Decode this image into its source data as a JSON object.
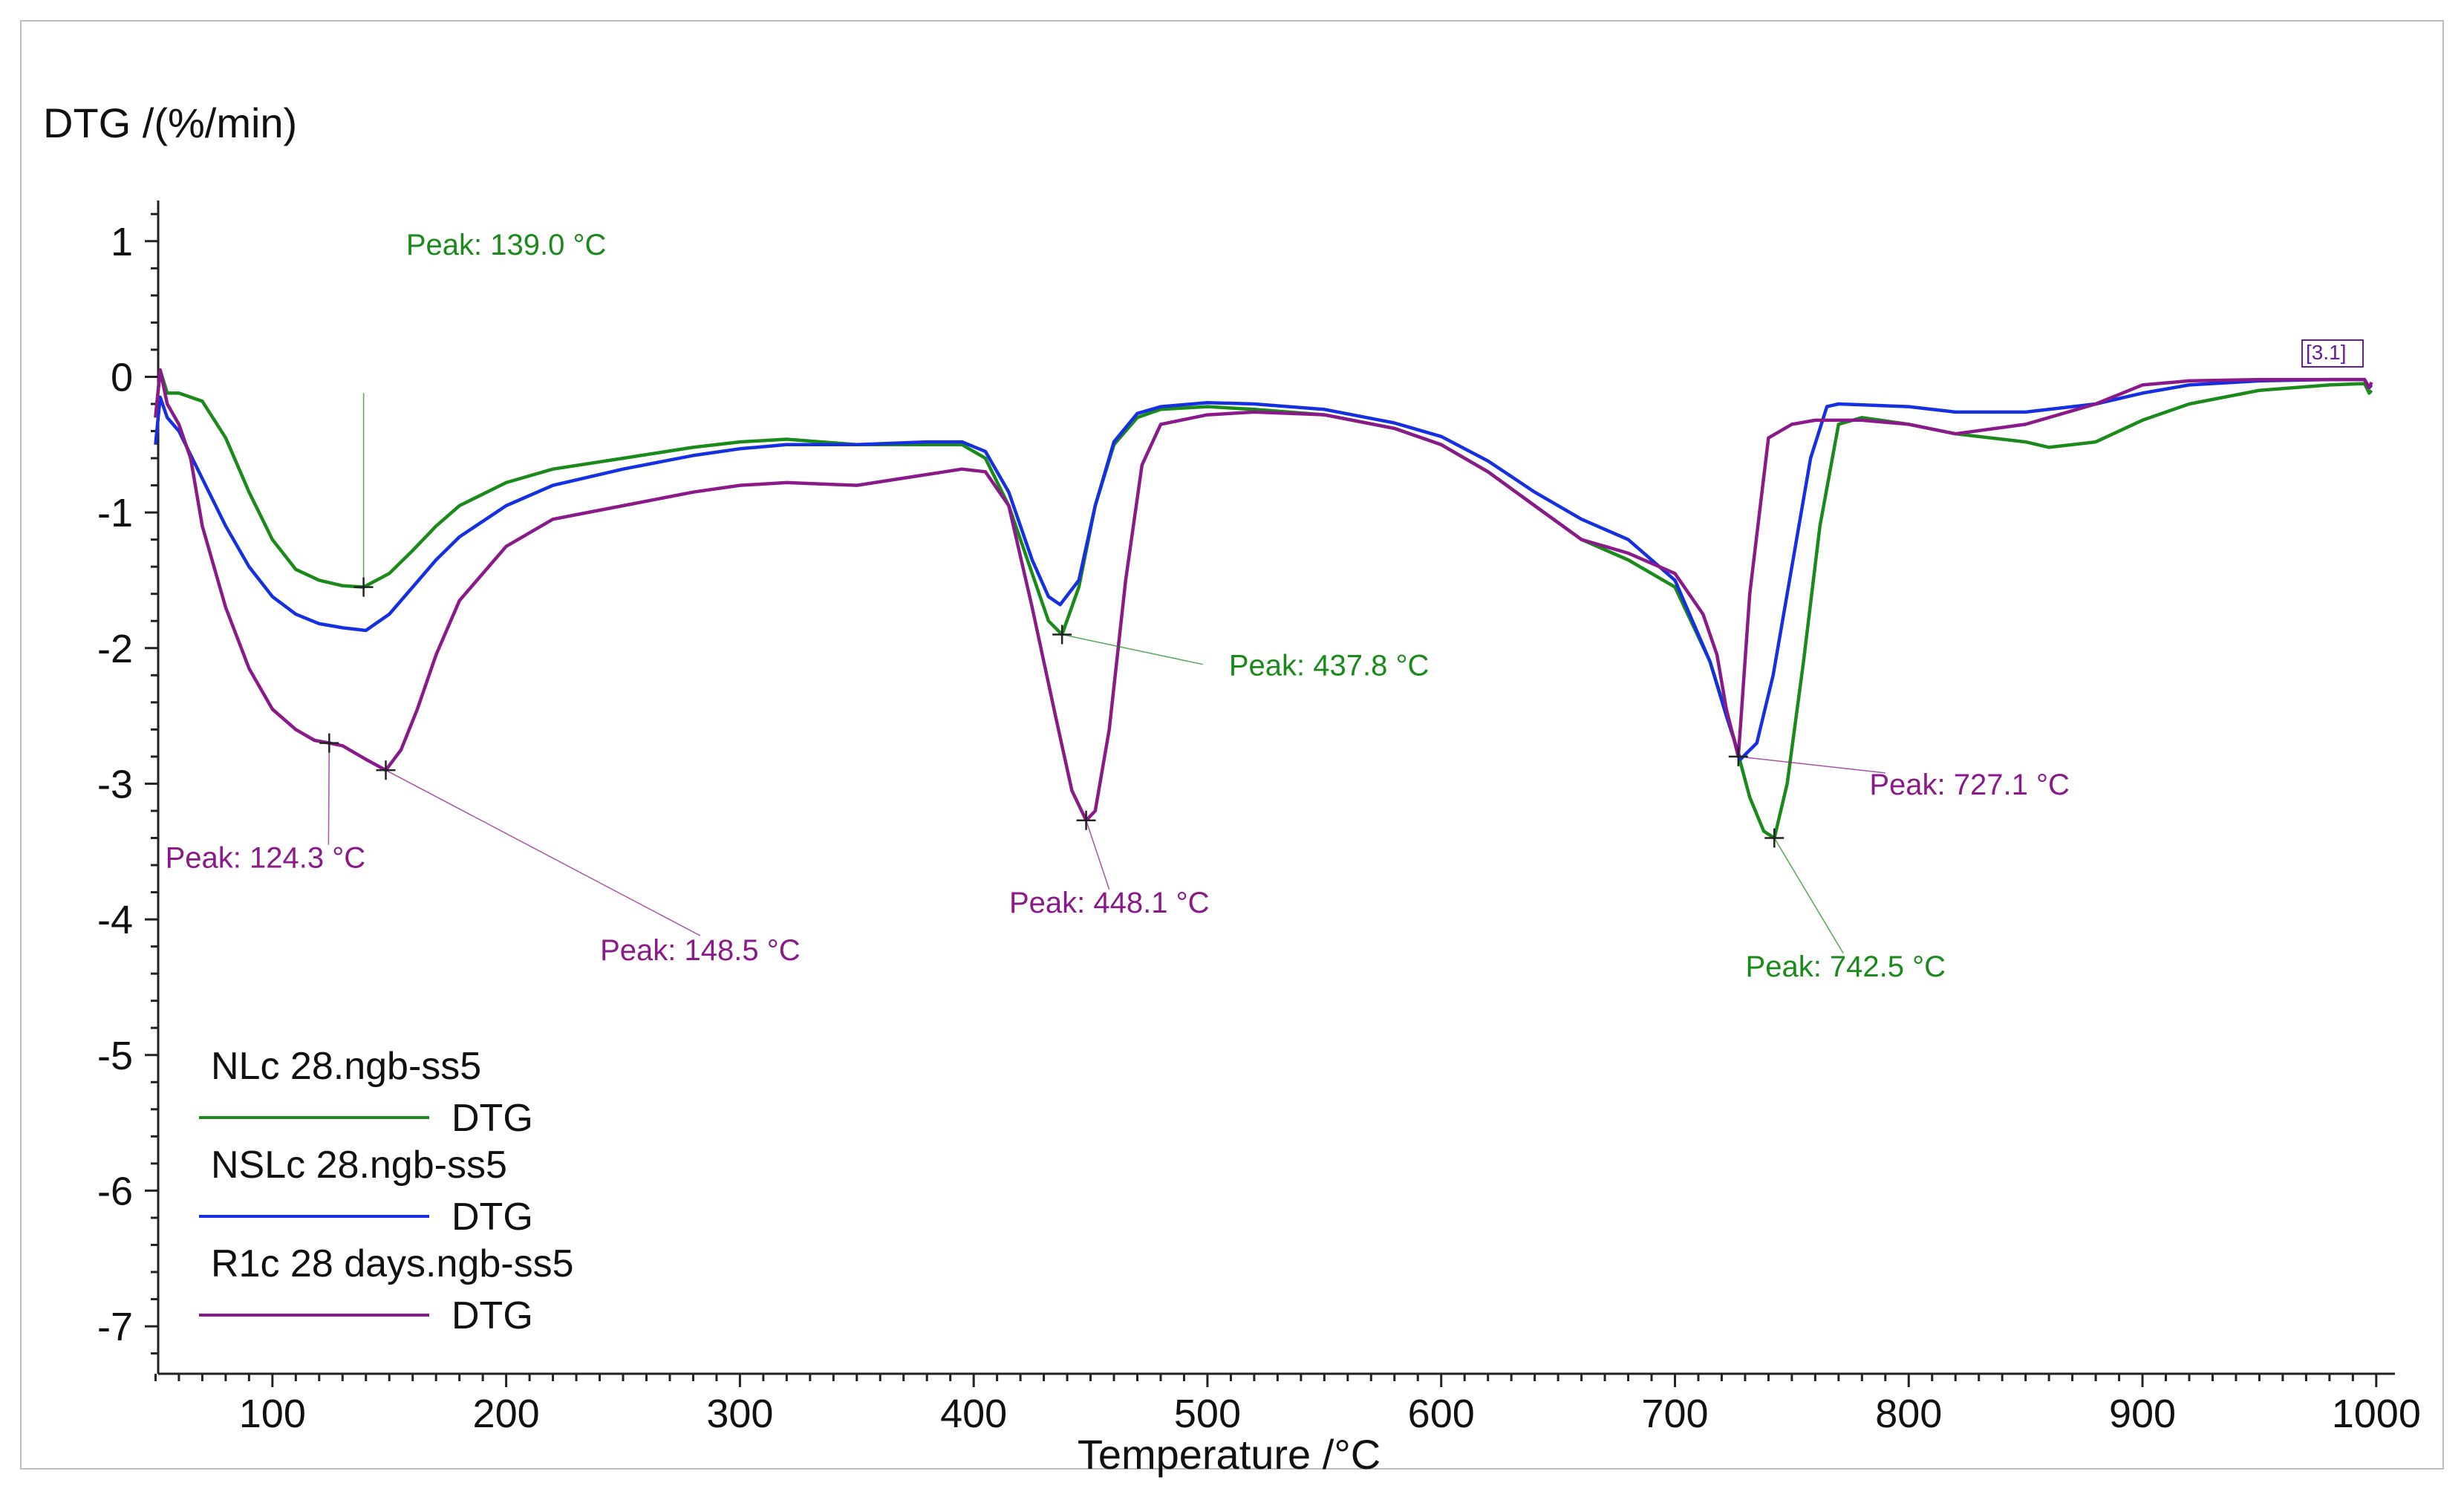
{
  "chart_data": {
    "type": "line",
    "title": "",
    "ylabel": "DTG /(%/min)",
    "xlabel": "Temperature /°C",
    "xlim": [
      47,
      1008
    ],
    "ylim": [
      -7.35,
      1.3
    ],
    "x_ticks": [
      100,
      200,
      300,
      400,
      500,
      600,
      700,
      800,
      900,
      1000
    ],
    "y_ticks": [
      1,
      0,
      -1,
      -2,
      -3,
      -4,
      -5,
      -6,
      -7
    ],
    "end_marker_label": "[3.1]",
    "legend": {
      "placement": "bottom-left",
      "entries": [
        {
          "file": "NLc 28.ngb-ss5",
          "label": "DTG",
          "color": "#1a8a1a"
        },
        {
          "file": "NSLc 28.ngb-ss5",
          "label": "DTG",
          "color": "#1530e0"
        },
        {
          "file": "R1c 28 days.ngb-ss5",
          "label": "DTG",
          "color": "#8a1a8a"
        }
      ]
    },
    "series": [
      {
        "name": "NLc 28.ngb-ss5 DTG",
        "color": "#1a8a1a",
        "x": [
          50,
          52,
          55,
          60,
          70,
          80,
          90,
          100,
          110,
          120,
          130,
          139,
          150,
          160,
          170,
          180,
          200,
          220,
          250,
          280,
          300,
          320,
          350,
          380,
          395,
          405,
          415,
          425,
          432,
          437.8,
          445,
          452,
          460,
          470,
          480,
          500,
          520,
          550,
          580,
          600,
          620,
          640,
          660,
          680,
          700,
          715,
          725,
          732,
          738,
          742.5,
          748,
          755,
          762,
          770,
          780,
          800,
          820,
          850,
          860,
          880,
          900,
          920,
          950,
          980,
          995,
          997,
          998
        ],
        "values": [
          -0.3,
          0.05,
          -0.12,
          -0.12,
          -0.18,
          -0.45,
          -0.85,
          -1.2,
          -1.42,
          -1.5,
          -1.54,
          -1.55,
          -1.45,
          -1.28,
          -1.1,
          -0.95,
          -0.78,
          -0.68,
          -0.6,
          -0.52,
          -0.48,
          -0.46,
          -0.5,
          -0.5,
          -0.5,
          -0.6,
          -0.95,
          -1.45,
          -1.8,
          -1.9,
          -1.55,
          -0.95,
          -0.5,
          -0.3,
          -0.24,
          -0.22,
          -0.24,
          -0.28,
          -0.38,
          -0.5,
          -0.7,
          -0.95,
          -1.2,
          -1.35,
          -1.55,
          -2.1,
          -2.65,
          -3.1,
          -3.35,
          -3.4,
          -3.0,
          -2.1,
          -1.1,
          -0.35,
          -0.3,
          -0.35,
          -0.42,
          -0.48,
          -0.52,
          -0.48,
          -0.32,
          -0.2,
          -0.1,
          -0.06,
          -0.05,
          -0.12,
          -0.1
        ]
      },
      {
        "name": "NSLc 28.ngb-ss5 DTG",
        "color": "#1530e0",
        "x": [
          50,
          52,
          55,
          60,
          70,
          80,
          90,
          100,
          110,
          120,
          130,
          140,
          150,
          160,
          170,
          180,
          200,
          220,
          250,
          280,
          300,
          320,
          350,
          380,
          395,
          405,
          415,
          425,
          432,
          437,
          445,
          452,
          460,
          470,
          480,
          500,
          520,
          550,
          580,
          600,
          620,
          640,
          660,
          680,
          700,
          715,
          722,
          728,
          735,
          742,
          750,
          758,
          765,
          770,
          800,
          820,
          850,
          880,
          900,
          920,
          950,
          980,
          995,
          997,
          998
        ],
        "values": [
          -0.5,
          -0.15,
          -0.3,
          -0.4,
          -0.75,
          -1.1,
          -1.4,
          -1.62,
          -1.75,
          -1.82,
          -1.85,
          -1.87,
          -1.75,
          -1.55,
          -1.35,
          -1.18,
          -0.95,
          -0.8,
          -0.68,
          -0.58,
          -0.53,
          -0.5,
          -0.5,
          -0.48,
          -0.48,
          -0.55,
          -0.85,
          -1.35,
          -1.62,
          -1.68,
          -1.5,
          -0.95,
          -0.48,
          -0.27,
          -0.22,
          -0.19,
          -0.2,
          -0.24,
          -0.34,
          -0.44,
          -0.62,
          -0.85,
          -1.05,
          -1.2,
          -1.5,
          -2.1,
          -2.5,
          -2.82,
          -2.7,
          -2.2,
          -1.4,
          -0.6,
          -0.22,
          -0.2,
          -0.22,
          -0.26,
          -0.26,
          -0.2,
          -0.12,
          -0.06,
          -0.03,
          -0.02,
          -0.02,
          -0.08,
          -0.06
        ]
      },
      {
        "name": "R1c 28 days.ngb-ss5 DTG",
        "color": "#8a1a8a",
        "x": [
          50,
          52,
          55,
          60,
          65,
          70,
          80,
          90,
          100,
          110,
          118,
          124.3,
          130,
          140,
          148.5,
          155,
          162,
          170,
          180,
          200,
          220,
          250,
          280,
          300,
          320,
          350,
          380,
          395,
          405,
          415,
          425,
          435,
          442,
          448.1,
          452,
          458,
          465,
          472,
          480,
          500,
          520,
          550,
          580,
          600,
          620,
          640,
          660,
          680,
          700,
          712,
          718,
          722,
          727.1,
          732,
          740,
          750,
          760,
          780,
          800,
          820,
          850,
          880,
          900,
          920,
          950,
          980,
          995,
          997,
          998
        ],
        "values": [
          -0.3,
          0.05,
          -0.2,
          -0.35,
          -0.6,
          -1.1,
          -1.7,
          -2.15,
          -2.45,
          -2.6,
          -2.68,
          -2.7,
          -2.72,
          -2.82,
          -2.9,
          -2.75,
          -2.45,
          -2.05,
          -1.65,
          -1.25,
          -1.05,
          -0.95,
          -0.85,
          -0.8,
          -0.78,
          -0.8,
          -0.72,
          -0.68,
          -0.7,
          -0.95,
          -1.7,
          -2.5,
          -3.05,
          -3.27,
          -3.2,
          -2.6,
          -1.5,
          -0.65,
          -0.35,
          -0.28,
          -0.26,
          -0.28,
          -0.38,
          -0.5,
          -0.7,
          -0.95,
          -1.2,
          -1.3,
          -1.45,
          -1.75,
          -2.05,
          -2.45,
          -2.8,
          -1.6,
          -0.45,
          -0.35,
          -0.32,
          -0.32,
          -0.35,
          -0.42,
          -0.35,
          -0.2,
          -0.06,
          -0.03,
          -0.02,
          -0.02,
          -0.02,
          -0.08,
          -0.04
        ]
      }
    ],
    "annotations": [
      {
        "text": "Peak: 139.0 °C",
        "x": 139.0,
        "y": -1.55,
        "series": "NLc 28.ngb-ss5 DTG",
        "color": "#1a8a1a",
        "label_x": 200,
        "label_y": 0.9,
        "label_at": [
          139,
          -0.12
        ],
        "anchor": "middle"
      },
      {
        "text": "Peak: 437.8 °C",
        "x": 437.8,
        "y": -1.9,
        "series": "NLc 28.ngb-ss5 DTG",
        "color": "#1a8a1a",
        "label_x": 552,
        "label_y": -2.2,
        "label_at": [
          498,
          -2.12
        ],
        "anchor": "middle"
      },
      {
        "text": "Peak: 742.5 °C",
        "x": 742.5,
        "y": -3.4,
        "series": "NLc 28.ngb-ss5 DTG",
        "color": "#1a8a1a",
        "label_x": 773,
        "label_y": -4.42,
        "label_at": [
          772,
          -4.25
        ],
        "anchor": "middle"
      },
      {
        "text": "Peak: 124.3 °C",
        "x": 124.3,
        "y": -2.7,
        "series": "R1c 28 days.ngb-ss5 DTG",
        "color": "#8a1a8a",
        "label_x": 97,
        "label_y": -3.62,
        "label_at": [
          124,
          -3.45
        ],
        "anchor": "middle"
      },
      {
        "text": "Peak: 148.5 °C",
        "x": 148.5,
        "y": -2.9,
        "series": "R1c 28 days.ngb-ss5 DTG",
        "color": "#8a1a8a",
        "label_x": 283,
        "label_y": -4.3,
        "label_at": [
          283,
          -4.12
        ],
        "anchor": "middle"
      },
      {
        "text": "Peak: 448.1 °C",
        "x": 448.1,
        "y": -3.27,
        "series": "R1c 28 days.ngb-ss5 DTG",
        "color": "#8a1a8a",
        "label_x": 458,
        "label_y": -3.95,
        "label_at": [
          458,
          -3.78
        ],
        "anchor": "middle"
      },
      {
        "text": "Peak: 727.1 °C",
        "x": 727.1,
        "y": -2.8,
        "series": "R1c 28 days.ngb-ss5 DTG",
        "color": "#8a1a8a",
        "label_x": 826,
        "label_y": -3.08,
        "label_at": [
          790,
          -2.92
        ],
        "anchor": "middle"
      }
    ]
  }
}
